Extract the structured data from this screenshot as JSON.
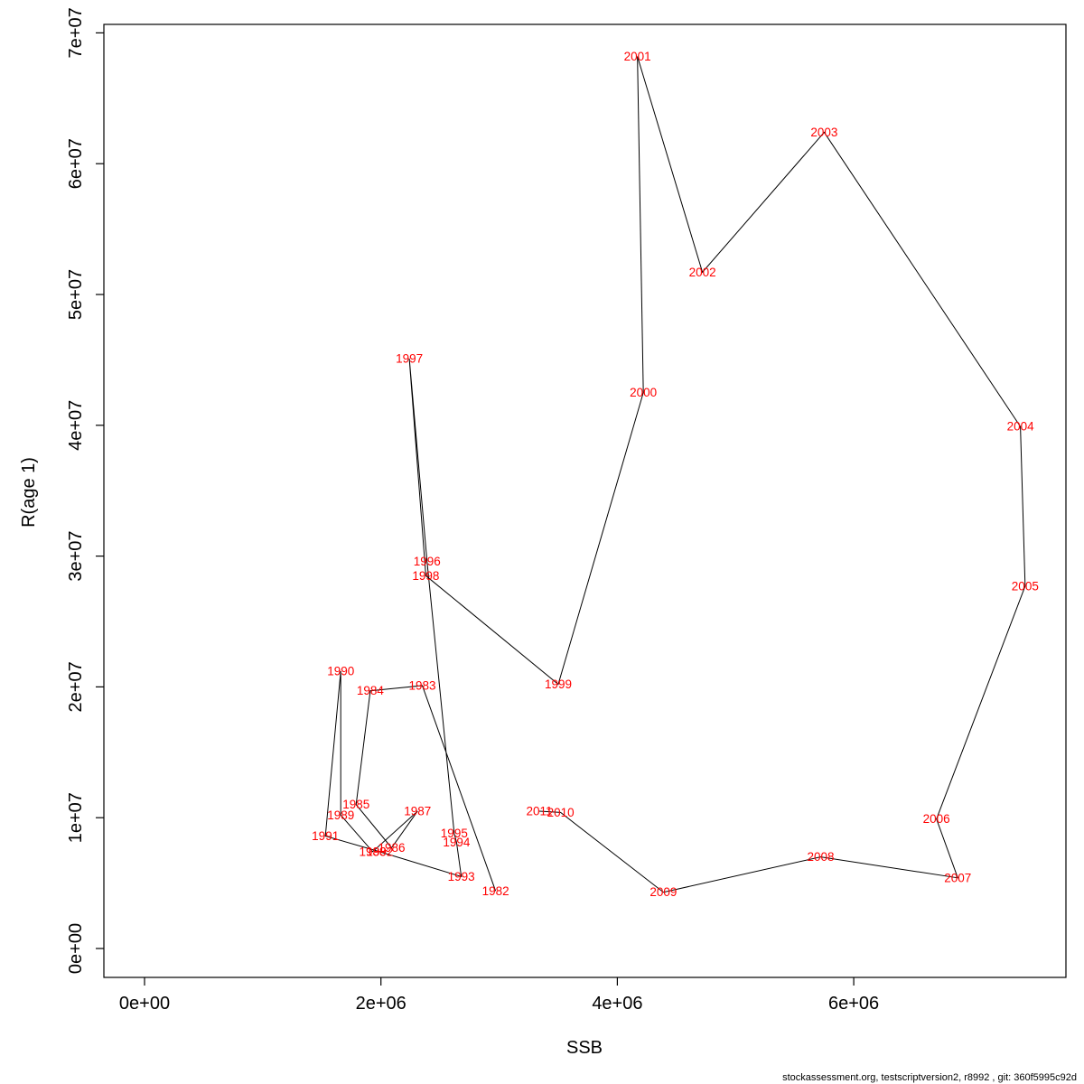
{
  "chart_data": {
    "type": "line",
    "title": "",
    "xlabel": "SSB",
    "ylabel": "R(age 1)",
    "grid": false,
    "legend": "none",
    "line_color": "#000000",
    "point_label_color": "#ff0000",
    "x_axis": {
      "range": [
        -340000,
        7790000
      ],
      "ticks": [
        {
          "value": 0,
          "label": "0e+00"
        },
        {
          "value": 2000000,
          "label": "2e+06"
        },
        {
          "value": 4000000,
          "label": "4e+06"
        },
        {
          "value": 6000000,
          "label": "6e+06"
        }
      ]
    },
    "y_axis": {
      "range": [
        -1900000,
        70800000
      ],
      "ticks": [
        {
          "value": 0,
          "label": "0e+00"
        },
        {
          "value": 10000000,
          "label": "1e+07"
        },
        {
          "value": 20000000,
          "label": "2e+07"
        },
        {
          "value": 30000000,
          "label": "3e+07"
        },
        {
          "value": 40000000,
          "label": "4e+07"
        },
        {
          "value": 50000000,
          "label": "5e+07"
        },
        {
          "value": 60000000,
          "label": "6e+07"
        },
        {
          "value": 70000000,
          "label": "7e+07"
        }
      ]
    },
    "points": [
      {
        "year": "1982",
        "ssb": 2970000,
        "rec": 4400000
      },
      {
        "year": "1983",
        "ssb": 2350000,
        "rec": 20100000
      },
      {
        "year": "1984",
        "ssb": 1910000,
        "rec": 19700000
      },
      {
        "year": "1985",
        "ssb": 1790000,
        "rec": 11000000
      },
      {
        "year": "1986",
        "ssb": 2090000,
        "rec": 7700000
      },
      {
        "year": "1987",
        "ssb": 2310000,
        "rec": 10500000
      },
      {
        "year": "1988",
        "ssb": 1930000,
        "rec": 7400000
      },
      {
        "year": "1989",
        "ssb": 1660000,
        "rec": 10200000
      },
      {
        "year": "1990",
        "ssb": 1660000,
        "rec": 21200000
      },
      {
        "year": "1991",
        "ssb": 1530000,
        "rec": 8600000
      },
      {
        "year": "1992",
        "ssb": 1990000,
        "rec": 7400000
      },
      {
        "year": "1993",
        "ssb": 2680000,
        "rec": 5500000
      },
      {
        "year": "1994",
        "ssb": 2640000,
        "rec": 8100000
      },
      {
        "year": "1995",
        "ssb": 2620000,
        "rec": 8800000
      },
      {
        "year": "1996",
        "ssb": 2390000,
        "rec": 29600000
      },
      {
        "year": "1997",
        "ssb": 2240000,
        "rec": 45100000
      },
      {
        "year": "1998",
        "ssb": 2380000,
        "rec": 28500000
      },
      {
        "year": "1999",
        "ssb": 3500000,
        "rec": 20200000
      },
      {
        "year": "2000",
        "ssb": 4220000,
        "rec": 42500000
      },
      {
        "year": "2001",
        "ssb": 4170000,
        "rec": 68200000
      },
      {
        "year": "2002",
        "ssb": 4720000,
        "rec": 51700000
      },
      {
        "year": "2003",
        "ssb": 5750000,
        "rec": 62400000
      },
      {
        "year": "2004",
        "ssb": 7410000,
        "rec": 39900000
      },
      {
        "year": "2005",
        "ssb": 7450000,
        "rec": 27700000
      },
      {
        "year": "2006",
        "ssb": 6700000,
        "rec": 9900000
      },
      {
        "year": "2007",
        "ssb": 6880000,
        "rec": 5400000
      },
      {
        "year": "2008",
        "ssb": 5720000,
        "rec": 7000000
      },
      {
        "year": "2009",
        "ssb": 4390000,
        "rec": 4300000
      },
      {
        "year": "2010",
        "ssb": 3520000,
        "rec": 10400000
      },
      {
        "year": "2011",
        "ssb": 3340000,
        "rec": 10500000
      }
    ]
  },
  "footer": {
    "text": "stockassessment.org, testscriptversion2, r8992 , git: 360f5995c92d"
  }
}
